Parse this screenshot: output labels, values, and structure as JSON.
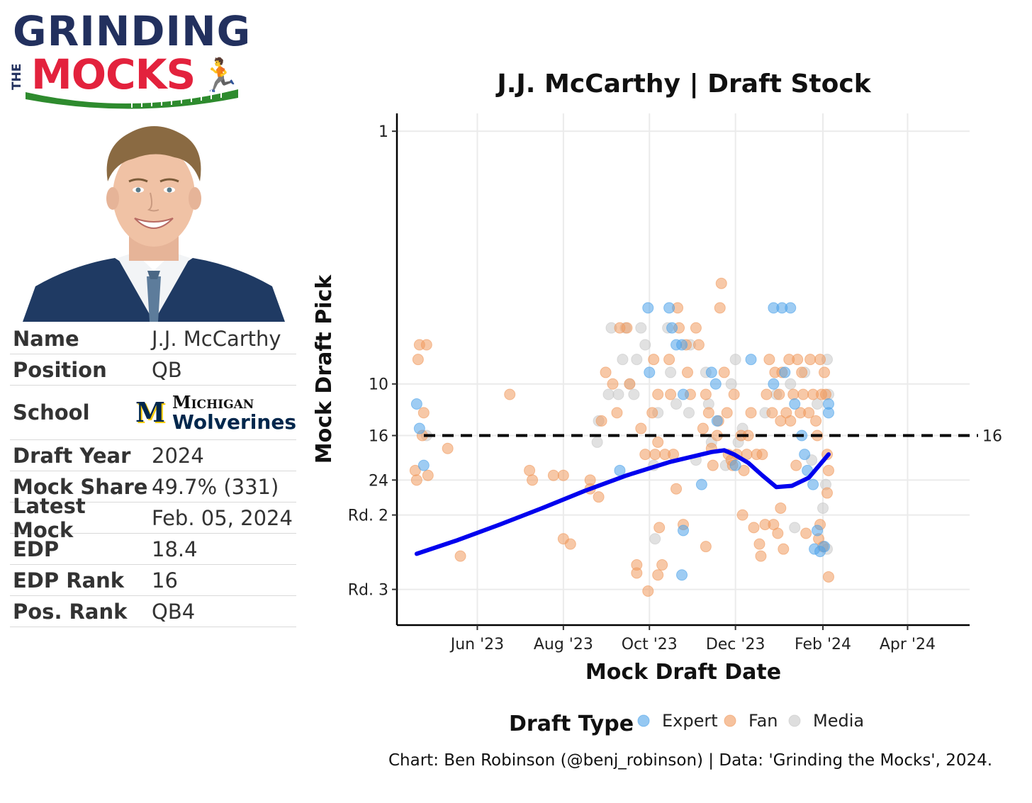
{
  "logo": {
    "line1": "GRINDING",
    "line2_small": "THE",
    "line2": "MOCKS"
  },
  "player": {
    "rows": [
      {
        "label": "Name",
        "value": "J.J. McCarthy"
      },
      {
        "label": "Position",
        "value": "QB"
      },
      {
        "label": "School",
        "value": ""
      },
      {
        "label": "Draft Year",
        "value": "2024"
      },
      {
        "label": "Mock Share",
        "value": "49.7% (331)"
      },
      {
        "label": "Latest Mock",
        "value": "Feb. 05, 2024"
      },
      {
        "label": "EDP",
        "value": "18.4"
      },
      {
        "label": "EDP Rank",
        "value": "16"
      },
      {
        "label": "Pos. Rank",
        "value": "QB4"
      }
    ],
    "school_logo": {
      "mark": "M",
      "line1": "Michigan",
      "line2": "Wolverines"
    }
  },
  "colors": {
    "expert": "#4ea3ea",
    "fan": "#f09a5e",
    "media": "#c8c8c8",
    "trend": "#0000ee",
    "logo_navy": "#22305e",
    "logo_red": "#e3223d",
    "logo_green": "#2e8b2e"
  },
  "chart_data": {
    "type": "scatter",
    "title": "J.J. McCarthy | Draft Stock",
    "xlabel": "Mock Draft Date",
    "ylabel": "Mock Draft Pick",
    "y_scale": "log",
    "y_reversed": true,
    "ylim": [
      0.85,
      90
    ],
    "xlim": [
      "2023-04-05",
      "2024-05-15"
    ],
    "x_ticks": [
      {
        "date": "2023-06-01",
        "label": "Jun '23"
      },
      {
        "date": "2023-08-01",
        "label": "Aug '23"
      },
      {
        "date": "2023-10-01",
        "label": "Oct '23"
      },
      {
        "date": "2023-12-01",
        "label": "Dec '23"
      },
      {
        "date": "2024-02-01",
        "label": "Feb '24"
      },
      {
        "date": "2024-04-01",
        "label": "Apr '24"
      }
    ],
    "y_ticks": [
      {
        "value": 1,
        "label": "1"
      },
      {
        "value": 10,
        "label": "10"
      },
      {
        "value": 16,
        "label": "16"
      },
      {
        "value": 24,
        "label": "24"
      },
      {
        "value": 33,
        "label": "Rd. 2"
      },
      {
        "value": 65,
        "label": "Rd. 3"
      }
    ],
    "reference_line": {
      "value": 16,
      "label": "16"
    },
    "legend": {
      "title": "Draft Type",
      "position": "bottom",
      "entries": [
        "Expert",
        "Fan",
        "Media"
      ]
    },
    "grid": true,
    "series": [
      {
        "name": "Expert",
        "points": [
          [
            "2023-04-19",
            12
          ],
          [
            "2023-04-21",
            15
          ],
          [
            "2023-04-24",
            21
          ],
          [
            "2023-09-10",
            22
          ],
          [
            "2023-09-30",
            5
          ],
          [
            "2023-10-01",
            9
          ],
          [
            "2023-10-15",
            5
          ],
          [
            "2023-10-17",
            6
          ],
          [
            "2023-10-20",
            7
          ],
          [
            "2023-10-24",
            7
          ],
          [
            "2023-10-25",
            11
          ],
          [
            "2023-11-07",
            25
          ],
          [
            "2023-11-14",
            9
          ],
          [
            "2023-11-17",
            10
          ],
          [
            "2023-11-18",
            14
          ],
          [
            "2023-12-01",
            21
          ],
          [
            "2023-12-12",
            8
          ],
          [
            "2023-12-28",
            5
          ],
          [
            "2024-01-03",
            5
          ],
          [
            "2024-01-09",
            5
          ],
          [
            "2023-12-28",
            10
          ],
          [
            "2024-01-05",
            9
          ],
          [
            "2024-01-12",
            12
          ],
          [
            "2024-01-17",
            16
          ],
          [
            "2024-01-19",
            19
          ],
          [
            "2024-01-21",
            22
          ],
          [
            "2024-01-25",
            25
          ],
          [
            "2024-01-28",
            38
          ],
          [
            "2024-01-26",
            45
          ],
          [
            "2024-01-30",
            46
          ],
          [
            "2024-02-02",
            44
          ],
          [
            "2024-02-05",
            12
          ],
          [
            "2024-02-05",
            13
          ],
          [
            "2023-10-25",
            38
          ],
          [
            "2023-10-24",
            57
          ]
        ]
      },
      {
        "name": "Fan",
        "points": [
          [
            "2023-04-18",
            22
          ],
          [
            "2023-04-19",
            24
          ],
          [
            "2023-04-20",
            8
          ],
          [
            "2023-04-21",
            7
          ],
          [
            "2023-04-23",
            16
          ],
          [
            "2023-04-24",
            13
          ],
          [
            "2023-04-26",
            7
          ],
          [
            "2023-04-27",
            23
          ],
          [
            "2023-05-11",
            18
          ],
          [
            "2023-05-20",
            48
          ],
          [
            "2023-06-24",
            11
          ],
          [
            "2023-07-08",
            22
          ],
          [
            "2023-07-10",
            24
          ],
          [
            "2023-07-25",
            23
          ],
          [
            "2023-08-01",
            23
          ],
          [
            "2023-08-01",
            41
          ],
          [
            "2023-08-06",
            43
          ],
          [
            "2023-08-20",
            24
          ],
          [
            "2023-08-20",
            26
          ],
          [
            "2023-08-26",
            28
          ],
          [
            "2023-08-28",
            14
          ],
          [
            "2023-08-31",
            9
          ],
          [
            "2023-09-05",
            10
          ],
          [
            "2023-09-08",
            13
          ],
          [
            "2023-09-10",
            6
          ],
          [
            "2023-09-15",
            6
          ],
          [
            "2023-09-17",
            10
          ],
          [
            "2023-09-22",
            52
          ],
          [
            "2023-09-22",
            56
          ],
          [
            "2023-09-25",
            15
          ],
          [
            "2023-09-28",
            19
          ],
          [
            "2023-10-03",
            13
          ],
          [
            "2023-10-04",
            8
          ],
          [
            "2023-10-05",
            19
          ],
          [
            "2023-10-07",
            11
          ],
          [
            "2023-10-07",
            17
          ],
          [
            "2023-10-08",
            37
          ],
          [
            "2023-10-10",
            52
          ],
          [
            "2023-10-12",
            19
          ],
          [
            "2023-10-15",
            8
          ],
          [
            "2023-10-16",
            11
          ],
          [
            "2023-10-18",
            19
          ],
          [
            "2023-10-20",
            26
          ],
          [
            "2023-10-21",
            5
          ],
          [
            "2023-10-22",
            6
          ],
          [
            "2023-10-25",
            36
          ],
          [
            "2023-10-27",
            7
          ],
          [
            "2023-10-28",
            9
          ],
          [
            "2023-10-30",
            11
          ],
          [
            "2023-11-03",
            6
          ],
          [
            "2023-11-05",
            7
          ],
          [
            "2023-11-08",
            15
          ],
          [
            "2023-11-10",
            11
          ],
          [
            "2023-11-12",
            13
          ],
          [
            "2023-11-14",
            18
          ],
          [
            "2023-11-15",
            21
          ],
          [
            "2023-11-18",
            16
          ],
          [
            "2023-11-19",
            14
          ],
          [
            "2023-11-20",
            5
          ],
          [
            "2023-11-21",
            4
          ],
          [
            "2023-11-23",
            9
          ],
          [
            "2023-11-25",
            13
          ],
          [
            "2023-11-26",
            19
          ],
          [
            "2023-11-28",
            20
          ],
          [
            "2023-11-29",
            21
          ],
          [
            "2023-11-30",
            11
          ],
          [
            "2023-12-02",
            19
          ],
          [
            "2023-12-05",
            16
          ],
          [
            "2023-12-07",
            22
          ],
          [
            "2023-12-09",
            19
          ],
          [
            "2023-12-10",
            16
          ],
          [
            "2023-12-12",
            13
          ],
          [
            "2023-12-14",
            37
          ],
          [
            "2023-12-16",
            19
          ],
          [
            "2023-12-18",
            43
          ],
          [
            "2023-12-19",
            48
          ],
          [
            "2023-12-20",
            19
          ],
          [
            "2023-12-22",
            36
          ],
          [
            "2023-12-23",
            11
          ],
          [
            "2023-12-25",
            8
          ],
          [
            "2023-12-27",
            13
          ],
          [
            "2023-12-29",
            9
          ],
          [
            "2024-01-01",
            11
          ],
          [
            "2024-01-02",
            14
          ],
          [
            "2024-01-03",
            9
          ],
          [
            "2024-01-04",
            45
          ],
          [
            "2024-01-06",
            13
          ],
          [
            "2024-01-08",
            8
          ],
          [
            "2024-01-09",
            14
          ],
          [
            "2024-01-11",
            11
          ],
          [
            "2024-01-13",
            21
          ],
          [
            "2024-01-14",
            8
          ],
          [
            "2024-01-16",
            13
          ],
          [
            "2024-01-17",
            9
          ],
          [
            "2024-01-18",
            11
          ],
          [
            "2024-01-20",
            39
          ],
          [
            "2024-01-22",
            13
          ],
          [
            "2024-01-23",
            8
          ],
          [
            "2024-01-25",
            11
          ],
          [
            "2024-01-27",
            14
          ],
          [
            "2024-01-28",
            16
          ],
          [
            "2024-01-30",
            8
          ],
          [
            "2024-01-31",
            11
          ],
          [
            "2024-02-01",
            44
          ],
          [
            "2024-02-02",
            9
          ],
          [
            "2024-02-03",
            11
          ],
          [
            "2024-02-04",
            19
          ],
          [
            "2024-02-05",
            22
          ],
          [
            "2024-02-05",
            58
          ],
          [
            "2024-01-30",
            36
          ],
          [
            "2024-02-04",
            27
          ],
          [
            "2024-01-02",
            31
          ],
          [
            "2024-01-29",
            41
          ],
          [
            "2023-12-06",
            33
          ],
          [
            "2023-12-31",
            39
          ],
          [
            "2023-12-28",
            36
          ],
          [
            "2023-11-10",
            44
          ],
          [
            "2023-10-07",
            57
          ],
          [
            "2023-09-30",
            66
          ]
        ]
      },
      {
        "name": "Media",
        "points": [
          [
            "2023-04-26",
            16
          ],
          [
            "2023-08-25",
            17
          ],
          [
            "2023-08-26",
            14
          ],
          [
            "2023-09-02",
            11
          ],
          [
            "2023-09-04",
            6
          ],
          [
            "2023-09-09",
            11
          ],
          [
            "2023-09-12",
            8
          ],
          [
            "2023-09-14",
            6
          ],
          [
            "2023-09-17",
            10
          ],
          [
            "2023-09-20",
            11
          ],
          [
            "2023-09-22",
            8
          ],
          [
            "2023-09-25",
            6
          ],
          [
            "2023-09-28",
            7
          ],
          [
            "2023-10-04",
            21
          ],
          [
            "2023-10-05",
            41
          ],
          [
            "2023-10-07",
            13
          ],
          [
            "2023-10-14",
            6
          ],
          [
            "2023-10-16",
            9
          ],
          [
            "2023-10-20",
            12
          ],
          [
            "2023-10-29",
            13
          ],
          [
            "2023-10-30",
            7
          ],
          [
            "2023-11-03",
            20
          ],
          [
            "2023-11-10",
            9
          ],
          [
            "2023-11-12",
            12
          ],
          [
            "2023-11-14",
            17
          ],
          [
            "2023-11-24",
            21
          ],
          [
            "2023-11-28",
            10
          ],
          [
            "2023-12-01",
            8
          ],
          [
            "2023-12-03",
            17
          ],
          [
            "2023-12-06",
            15
          ],
          [
            "2023-12-22",
            13
          ],
          [
            "2023-12-30",
            11
          ],
          [
            "2024-01-09",
            10
          ],
          [
            "2024-01-12",
            37
          ],
          [
            "2024-01-19",
            9
          ],
          [
            "2024-01-24",
            20
          ],
          [
            "2024-01-28",
            12
          ],
          [
            "2024-02-01",
            31
          ],
          [
            "2024-02-03",
            25
          ],
          [
            "2024-02-04",
            8
          ],
          [
            "2024-02-05",
            11
          ],
          [
            "2024-02-04",
            45
          ]
        ]
      }
    ],
    "trend_line": [
      [
        "2023-04-19",
        47
      ],
      [
        "2023-05-18",
        41.5
      ],
      [
        "2023-06-17",
        36
      ],
      [
        "2023-07-17",
        31
      ],
      [
        "2023-08-16",
        26.5
      ],
      [
        "2023-09-15",
        23
      ],
      [
        "2023-10-15",
        20.4
      ],
      [
        "2023-11-14",
        18.6
      ],
      [
        "2023-11-23",
        18.3
      ],
      [
        "2023-11-30",
        19
      ],
      [
        "2023-12-10",
        20.5
      ],
      [
        "2023-12-20",
        23
      ],
      [
        "2023-12-30",
        25.6
      ],
      [
        "2024-01-10",
        25.3
      ],
      [
        "2024-01-22",
        23.5
      ],
      [
        "2024-02-05",
        19
      ]
    ]
  },
  "credit": "Chart: Ben Robinson (@benj_robinson) | Data: 'Grinding the Mocks', 2024."
}
